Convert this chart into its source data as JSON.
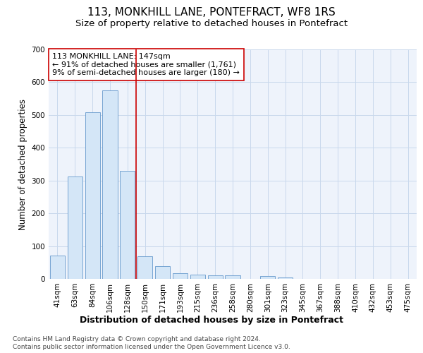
{
  "title": "113, MONKHILL LANE, PONTEFRACT, WF8 1RS",
  "subtitle": "Size of property relative to detached houses in Pontefract",
  "xlabel": "Distribution of detached houses by size in Pontefract",
  "ylabel": "Number of detached properties",
  "categories": [
    "41sqm",
    "63sqm",
    "84sqm",
    "106sqm",
    "128sqm",
    "150sqm",
    "171sqm",
    "193sqm",
    "215sqm",
    "236sqm",
    "258sqm",
    "280sqm",
    "301sqm",
    "323sqm",
    "345sqm",
    "367sqm",
    "388sqm",
    "410sqm",
    "432sqm",
    "453sqm",
    "475sqm"
  ],
  "values": [
    72,
    312,
    508,
    575,
    330,
    70,
    38,
    18,
    12,
    10,
    10,
    0,
    8,
    5,
    0,
    0,
    0,
    0,
    0,
    0,
    0
  ],
  "bar_color": "#d4e6f7",
  "bar_edge_color": "#6699cc",
  "vline_x": 5,
  "vline_color": "#cc0000",
  "annotation_text": "113 MONKHILL LANE: 147sqm\n← 91% of detached houses are smaller (1,761)\n9% of semi-detached houses are larger (180) →",
  "annotation_box_color": "#ffffff",
  "annotation_box_edge": "#cc0000",
  "ylim": [
    0,
    700
  ],
  "yticks": [
    0,
    100,
    200,
    300,
    400,
    500,
    600,
    700
  ],
  "fig_bg_color": "#ffffff",
  "plot_bg_color": "#eef3fb",
  "grid_color": "#c8d8ec",
  "footer_line1": "Contains HM Land Registry data © Crown copyright and database right 2024.",
  "footer_line2": "Contains public sector information licensed under the Open Government Licence v3.0.",
  "title_fontsize": 11,
  "subtitle_fontsize": 9.5,
  "xlabel_fontsize": 9,
  "ylabel_fontsize": 8.5,
  "tick_fontsize": 7.5,
  "footer_fontsize": 6.5,
  "annotation_fontsize": 8
}
